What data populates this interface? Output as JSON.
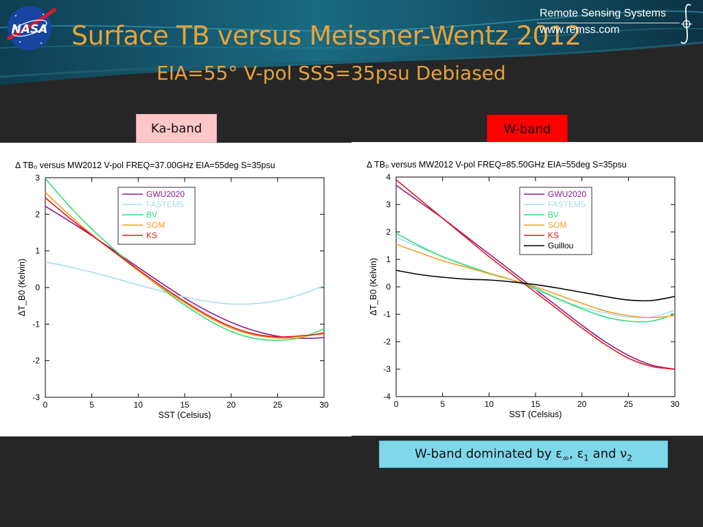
{
  "slide": {
    "title": "Surface TB versus Meissner-Wentz 2012",
    "subtitle": "EIA=55° V-pol  SSS=35psu  Debiased",
    "logo_text": "NASA",
    "org_name": "Remote Sensing Systems",
    "org_url": "www.remss.com",
    "ka_label": "Ka-band",
    "w_label": "W-band",
    "note": {
      "prefix": "W-band dominated by ",
      "eps_inf": "ε",
      "eps_inf_sub": "∞",
      "sep1": ", ",
      "eps1": "ε",
      "eps1_sub": "1",
      "sep2": " and ",
      "nu": "ν",
      "nu_sub": "2"
    }
  },
  "chart_data": [
    {
      "type": "line",
      "title": "Δ TB₀  versus MW2012 V-pol   FREQ=37.00GHz  EIA=55deg S=35psu",
      "xlabel": "SST (Celsius)",
      "ylabel": "ΔT_B0 (Kelvin)",
      "xlim": [
        0,
        30
      ],
      "ylim": [
        -3,
        3
      ],
      "xticks": [
        0,
        5,
        10,
        15,
        20,
        25,
        30
      ],
      "yticks": [
        -3,
        -2,
        -1,
        0,
        1,
        2,
        3
      ],
      "grid": false,
      "legend_position": "top-left",
      "x": [
        0,
        2.5,
        5,
        7.5,
        10,
        12.5,
        15,
        17.5,
        20,
        22.5,
        25,
        27.5,
        30
      ],
      "series": [
        {
          "name": "GWU2020",
          "color": "#8b1a8b",
          "values": [
            2.22,
            1.83,
            1.42,
            0.99,
            0.55,
            0.12,
            -0.29,
            -0.65,
            -0.95,
            -1.18,
            -1.33,
            -1.39,
            -1.37
          ]
        },
        {
          "name": "FASTEM5",
          "color": "#a8dde8",
          "values": [
            0.7,
            0.57,
            0.42,
            0.25,
            0.07,
            -0.1,
            -0.26,
            -0.38,
            -0.45,
            -0.44,
            -0.36,
            -0.19,
            0.05
          ]
        },
        {
          "name": "BV",
          "color": "#2ce07a",
          "values": [
            2.98,
            2.25,
            1.6,
            1.02,
            0.48,
            -0.02,
            -0.48,
            -0.88,
            -1.2,
            -1.39,
            -1.44,
            -1.37,
            -1.13
          ]
        },
        {
          "name": "SOM",
          "color": "#f0a020",
          "values": [
            2.6,
            2.0,
            1.45,
            0.95,
            0.46,
            0.0,
            -0.42,
            -0.8,
            -1.11,
            -1.3,
            -1.38,
            -1.36,
            -1.22
          ]
        },
        {
          "name": "KS",
          "color": "#e01818",
          "values": [
            2.45,
            1.92,
            1.43,
            0.96,
            0.49,
            0.04,
            -0.38,
            -0.76,
            -1.07,
            -1.27,
            -1.35,
            -1.32,
            -1.26
          ]
        }
      ]
    },
    {
      "type": "line",
      "title": "Δ TB₀  versus MW2012 V-pol   FREQ=85.50GHz  EIA=55deg S=35psu",
      "xlabel": "SST (Celsius)",
      "ylabel": "ΔT_B0 (Kelvin)",
      "xlim": [
        0,
        30
      ],
      "ylim": [
        -4,
        4
      ],
      "xticks": [
        0,
        5,
        10,
        15,
        20,
        25,
        30
      ],
      "yticks": [
        -4,
        -3,
        -2,
        -1,
        0,
        1,
        2,
        3,
        4
      ],
      "grid": false,
      "legend_position": "top-right",
      "x": [
        0,
        2.5,
        5,
        7.5,
        10,
        12.5,
        15,
        17.5,
        20,
        22.5,
        25,
        27.5,
        30
      ],
      "series": [
        {
          "name": "GWU2020",
          "color": "#8b1a8b",
          "values": [
            3.7,
            3.1,
            2.5,
            1.85,
            1.2,
            0.55,
            -0.1,
            -0.75,
            -1.4,
            -2.0,
            -2.5,
            -2.85,
            -3.0
          ]
        },
        {
          "name": "FASTEM5",
          "color": "#a8dde8",
          "values": [
            1.8,
            1.45,
            1.1,
            0.8,
            0.5,
            0.25,
            -0.1,
            -0.45,
            -0.75,
            -0.95,
            -1.1,
            -1.1,
            -0.85
          ]
        },
        {
          "name": "BV",
          "color": "#2ce07a",
          "values": [
            1.95,
            1.5,
            1.1,
            0.78,
            0.5,
            0.25,
            -0.05,
            -0.45,
            -0.8,
            -1.1,
            -1.25,
            -1.25,
            -1.0
          ]
        },
        {
          "name": "SOM",
          "color": "#f0a020",
          "values": [
            1.55,
            1.25,
            0.95,
            0.72,
            0.48,
            0.25,
            0.0,
            -0.3,
            -0.6,
            -0.88,
            -1.05,
            -1.12,
            -1.05
          ]
        },
        {
          "name": "KS",
          "color": "#e01818",
          "values": [
            3.9,
            3.2,
            2.5,
            1.8,
            1.1,
            0.45,
            -0.2,
            -0.85,
            -1.5,
            -2.1,
            -2.6,
            -2.9,
            -3.0
          ]
        },
        {
          "name": "Guillou",
          "color": "#000000",
          "values": [
            0.6,
            0.45,
            0.35,
            0.28,
            0.25,
            0.18,
            0.08,
            -0.05,
            -0.2,
            -0.35,
            -0.48,
            -0.5,
            -0.35
          ]
        }
      ]
    }
  ]
}
